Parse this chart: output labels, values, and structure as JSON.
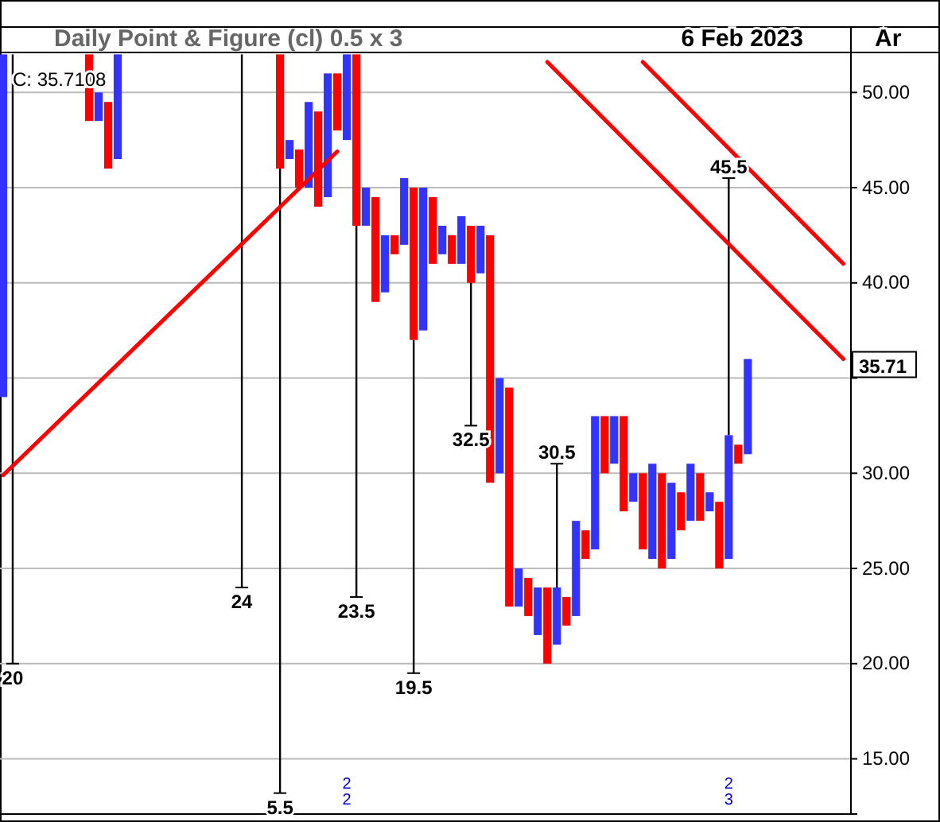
{
  "chart_data": {
    "type": "bar",
    "subtitle": "Daily Point & Figure (cl) 0.5 x 3",
    "categories": [
      null,
      null,
      null,
      null,
      null,
      null,
      null,
      null,
      null,
      null,
      null,
      null,
      null,
      null,
      null,
      null,
      null,
      null,
      null,
      null,
      null,
      null,
      null,
      null,
      null,
      null,
      null,
      null,
      null,
      null,
      null,
      null,
      null,
      null,
      null,
      null,
      null,
      null,
      null,
      null,
      null,
      null,
      null,
      null,
      null,
      null,
      null,
      null,
      null,
      null,
      null,
      null,
      null,
      null,
      null,
      null,
      null,
      null,
      null,
      null,
      null,
      null,
      null,
      null,
      null,
      null,
      null,
      null,
      null,
      null,
      null,
      null,
      null,
      null,
      null,
      null,
      null,
      null,
      null,
      null,
      null,
      null,
      null,
      null,
      null,
      null,
      null,
      null,
      null
    ],
    "ylim": [
      12.1,
      52.1
    ],
    "yticks": [
      {
        "value": 15,
        "label": "15.00"
      },
      {
        "value": 20,
        "label": "20.00"
      },
      {
        "value": 25,
        "label": "25.00"
      },
      {
        "value": 30,
        "label": "30.00"
      },
      {
        "value": 35,
        "label": null
      },
      {
        "value": 40,
        "label": "40.00"
      },
      {
        "value": 45,
        "label": "45.00"
      },
      {
        "value": 50,
        "label": "50.00"
      }
    ],
    "tick_labels": "y",
    "grid": "y",
    "series": [
      {
        "color": "#3333ff",
        "base": [
          34,
          null,
          null,
          null,
          null,
          null,
          null,
          null,
          null,
          null,
          48.5,
          null,
          46.5,
          null,
          null,
          null,
          null,
          null,
          null,
          null,
          null,
          null,
          null,
          null,
          null,
          null,
          null,
          null,
          null,
          null,
          46.5,
          null,
          45,
          null,
          44.5,
          null,
          47.5,
          null,
          43,
          null,
          39.5,
          null,
          42,
          null,
          37.5,
          null,
          41.5,
          null,
          41,
          null,
          40.5,
          null,
          30,
          null,
          23,
          null,
          21.5,
          null,
          21,
          null,
          22.5,
          null,
          26,
          null,
          30.5,
          null,
          28.5,
          null,
          25.5,
          null,
          25.5,
          null,
          27.5,
          null,
          28,
          null,
          25.5,
          null,
          31,
          null,
          null,
          null,
          null,
          null,
          null,
          null,
          null,
          null,
          null
        ],
        "values": [
          18,
          null,
          null,
          null,
          null,
          null,
          null,
          null,
          null,
          null,
          1.5,
          null,
          5.5,
          null,
          null,
          null,
          null,
          null,
          null,
          null,
          null,
          null,
          null,
          null,
          null,
          null,
          null,
          null,
          null,
          null,
          1,
          null,
          4.5,
          null,
          6.5,
          null,
          4.5,
          null,
          2,
          null,
          3,
          null,
          3.5,
          null,
          7.5,
          null,
          1.5,
          null,
          2.5,
          null,
          2.5,
          null,
          5,
          null,
          2,
          null,
          2.5,
          null,
          3,
          null,
          5,
          null,
          7,
          null,
          2.5,
          null,
          1.5,
          null,
          5,
          null,
          4,
          null,
          3,
          null,
          1,
          null,
          6.5,
          null,
          5,
          null,
          null,
          null,
          null,
          null,
          null,
          null,
          null,
          null,
          null
        ]
      },
      {
        "color": "#ff0000",
        "base": [
          null,
          null,
          null,
          null,
          null,
          null,
          null,
          null,
          null,
          48.5,
          null,
          46,
          null,
          null,
          null,
          null,
          null,
          null,
          null,
          null,
          null,
          null,
          null,
          null,
          null,
          null,
          null,
          null,
          null,
          46,
          null,
          45,
          null,
          44,
          null,
          48,
          null,
          43,
          null,
          39,
          null,
          41.5,
          null,
          37,
          null,
          41,
          null,
          41,
          null,
          40,
          null,
          29.5,
          null,
          23,
          null,
          22.5,
          null,
          20,
          null,
          22,
          null,
          25.5,
          null,
          30,
          null,
          28,
          null,
          26,
          null,
          25,
          null,
          27,
          null,
          27.5,
          null,
          25,
          null,
          30.5,
          null,
          null,
          null,
          null,
          null,
          null,
          null,
          null,
          null,
          null,
          null
        ],
        "values": [
          null,
          null,
          null,
          null,
          null,
          null,
          null,
          null,
          null,
          3.5,
          null,
          3.5,
          null,
          null,
          null,
          null,
          null,
          null,
          null,
          null,
          null,
          null,
          null,
          null,
          null,
          null,
          null,
          null,
          null,
          6,
          null,
          2,
          null,
          5,
          null,
          3,
          null,
          9,
          null,
          5.5,
          null,
          1,
          null,
          8,
          null,
          3.5,
          null,
          1.5,
          null,
          3,
          null,
          13,
          null,
          11.5,
          null,
          2,
          null,
          4,
          null,
          1.5,
          null,
          1.5,
          null,
          3,
          null,
          5,
          null,
          4,
          null,
          5,
          null,
          2,
          null,
          2.5,
          null,
          3.5,
          null,
          1,
          null,
          null,
          null,
          null,
          null,
          null,
          null,
          null,
          null,
          null,
          null
        ]
      },
      {
        "color": "#000000",
        "base": [
          null,
          52,
          null,
          null,
          null,
          null,
          null,
          null,
          null,
          null,
          null,
          null,
          null,
          null,
          null,
          null,
          null,
          null,
          null,
          null,
          null,
          null,
          null,
          null,
          null,
          52,
          null,
          null,
          null,
          46,
          null,
          null,
          null,
          null,
          null,
          null,
          null,
          43,
          null,
          null,
          null,
          null,
          null,
          37,
          null,
          null,
          null,
          null,
          null,
          40,
          null,
          null,
          null,
          null,
          null,
          null,
          null,
          null,
          24,
          null,
          null,
          null,
          null,
          null,
          null,
          null,
          null,
          null,
          null,
          null,
          null,
          null,
          null,
          null,
          null,
          null,
          32,
          null,
          null,
          null,
          null,
          null,
          null,
          null,
          null,
          null,
          null,
          null,
          null
        ],
        "values": [
          null,
          -32,
          null,
          null,
          null,
          null,
          null,
          null,
          null,
          null,
          null,
          null,
          null,
          null,
          null,
          null,
          null,
          null,
          null,
          null,
          null,
          null,
          null,
          null,
          null,
          -28,
          null,
          null,
          null,
          -32.8,
          null,
          null,
          null,
          null,
          null,
          null,
          null,
          -19.5,
          null,
          null,
          null,
          null,
          null,
          -17.5,
          null,
          null,
          null,
          null,
          null,
          -7.5,
          null,
          null,
          null,
          null,
          null,
          null,
          null,
          null,
          6.5,
          null,
          null,
          null,
          null,
          null,
          null,
          null,
          null,
          null,
          null,
          null,
          null,
          null,
          null,
          null,
          null,
          null,
          13.5,
          null,
          null,
          null,
          null,
          null,
          null,
          null,
          null,
          null,
          null,
          null,
          null
        ]
      },
      {
        "type": "line",
        "color": "#ff0000",
        "values": [
          29.9,
          null,
          null,
          null,
          null,
          null,
          null,
          null,
          null,
          null,
          null,
          null,
          null,
          null,
          null,
          null,
          null,
          null,
          null,
          null,
          null,
          null,
          null,
          null,
          null,
          null,
          null,
          null,
          null,
          null,
          null,
          null,
          null,
          null,
          null,
          46.9,
          null,
          null,
          null,
          null,
          null,
          null,
          null,
          null,
          null,
          null,
          null,
          null,
          null,
          null,
          null,
          null,
          null,
          null,
          null,
          null,
          null,
          null,
          null,
          null,
          null,
          null,
          null,
          null,
          null,
          null,
          null,
          null,
          null,
          null,
          null,
          null,
          null,
          null,
          null,
          null,
          null,
          null,
          null,
          null,
          null,
          null,
          null,
          null,
          null,
          null,
          null,
          null,
          null
        ]
      },
      {
        "type": "line",
        "color": "#ff0000",
        "values": [
          null,
          null,
          null,
          null,
          null,
          null,
          null,
          null,
          null,
          null,
          null,
          null,
          null,
          null,
          null,
          null,
          null,
          null,
          null,
          null,
          null,
          null,
          null,
          null,
          null,
          null,
          null,
          null,
          null,
          null,
          null,
          null,
          null,
          null,
          null,
          null,
          null,
          null,
          null,
          null,
          null,
          null,
          null,
          null,
          null,
          null,
          null,
          null,
          null,
          null,
          null,
          null,
          null,
          null,
          null,
          null,
          null,
          51.6,
          null,
          null,
          null,
          null,
          null,
          null,
          null,
          null,
          null,
          null,
          null,
          null,
          null,
          null,
          null,
          null,
          null,
          null,
          null,
          null,
          null,
          null,
          null,
          null,
          null,
          null,
          null,
          null,
          null,
          null,
          36
        ]
      },
      {
        "type": "line",
        "color": "#ff0000",
        "values": [
          null,
          null,
          null,
          null,
          null,
          null,
          null,
          null,
          null,
          null,
          null,
          null,
          null,
          null,
          null,
          null,
          null,
          null,
          null,
          null,
          null,
          null,
          null,
          null,
          null,
          null,
          null,
          null,
          null,
          null,
          null,
          null,
          null,
          null,
          null,
          null,
          null,
          null,
          null,
          null,
          null,
          null,
          null,
          null,
          null,
          null,
          null,
          null,
          null,
          null,
          null,
          null,
          null,
          null,
          null,
          null,
          null,
          null,
          null,
          null,
          null,
          null,
          null,
          null,
          null,
          null,
          null,
          51.6,
          null,
          null,
          null,
          null,
          null,
          null,
          null,
          null,
          null,
          null,
          null,
          null,
          null,
          null,
          null,
          null,
          null,
          null,
          null,
          null,
          41
        ]
      }
    ],
    "annotations": [
      "6 Feb 2023",
      "Ar",
      "C: 35.7108",
      "2",
      "2",
      "2",
      "3",
      "20",
      "24",
      "5.5",
      "23.5",
      "19.5",
      "32.5",
      "30.5",
      "45.5",
      {
        "text": "35.71",
        "y": 35.71
      }
    ]
  }
}
